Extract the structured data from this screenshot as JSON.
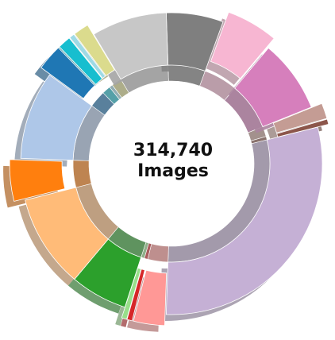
{
  "chart_data": {
    "type": "sunburst",
    "center_text": [
      "314,740",
      "Images"
    ],
    "series": [
      {
        "color": "#7f7f7f",
        "values": [
          22
        ],
        "explode": false
      },
      {
        "color": "#f7b6d2",
        "values": [
          20
        ],
        "explode": true
      },
      {
        "color": "#d67fbc",
        "values": [
          28
        ],
        "explode": false
      },
      {
        "color": "#c49c94",
        "values": [
          6
        ],
        "explode": true
      },
      {
        "color": "#8c564b",
        "values": [
          2
        ],
        "explode": true
      },
      {
        "color": "#c5b0d5",
        "values": [
          106
        ],
        "explode": false
      },
      {
        "color": "#ff9896",
        "values": [
          12
        ],
        "explode": true
      },
      {
        "color": "#d62728",
        "values": [
          2
        ],
        "explode": true
      },
      {
        "color": "#98df8a",
        "values": [
          2
        ],
        "explode": true
      },
      {
        "color": "#2ca02c",
        "values": [
          22
        ],
        "explode": false
      },
      {
        "color": "#ffbb78",
        "values": [
          36
        ],
        "explode": false
      },
      {
        "color": "#ff7f0e",
        "values": [
          16
        ],
        "explode": true
      },
      {
        "color": "#aec7e8",
        "values": [
          34
        ],
        "explode": false
      },
      {
        "color": "#1f77b4",
        "values": [
          10
        ],
        "explode": true
      },
      {
        "color": "#17becf",
        "values": [
          5
        ],
        "explode": true
      },
      {
        "color": "#9edae5",
        "values": [
          2
        ],
        "explode": true
      },
      {
        "color": "#dbdb8d",
        "values": [
          6
        ],
        "explode": true
      },
      {
        "color": "#c7c7c7",
        "values": [
          29
        ],
        "explode": false
      }
    ]
  }
}
